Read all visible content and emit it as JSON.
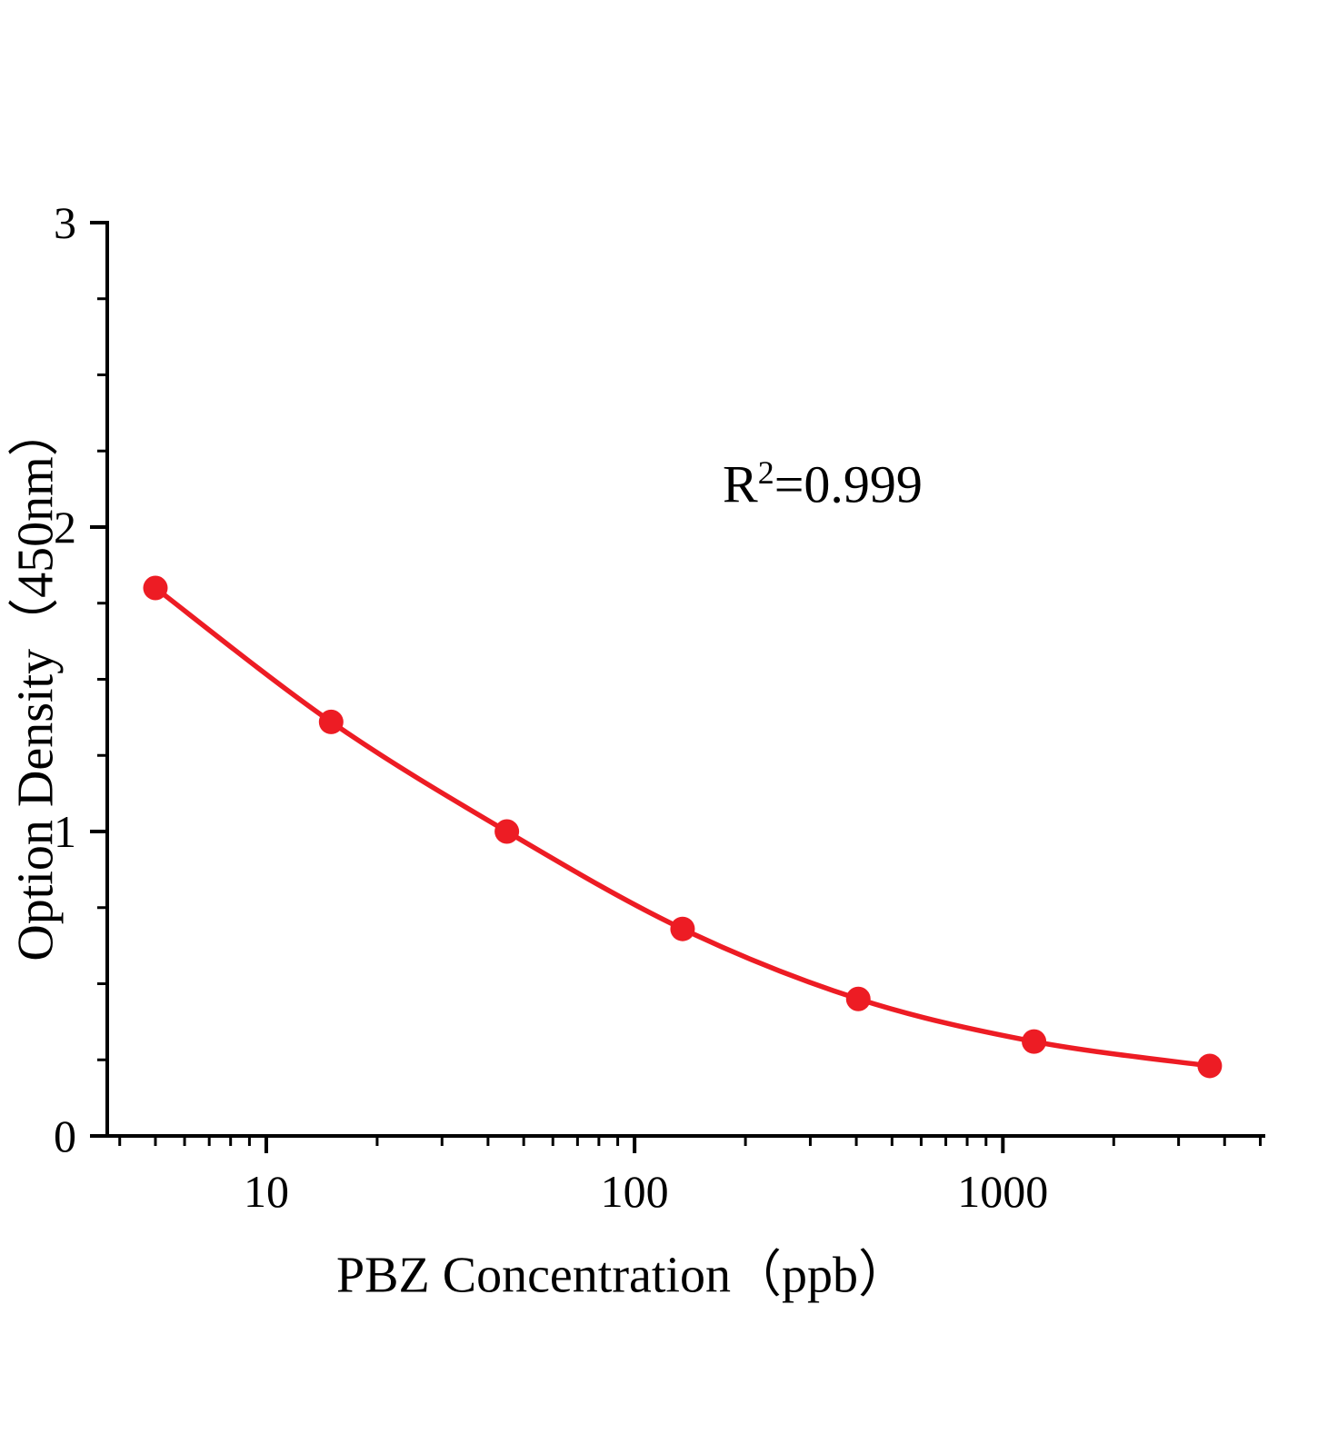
{
  "chart_data": {
    "type": "line",
    "title": "",
    "xlabel": "PBZ  Concentration（ppb）",
    "ylabel": "Option Density（450nm）",
    "annotation": {
      "base": "R",
      "sup": "2",
      "rest": "=0.999"
    },
    "x": [
      5,
      15,
      45,
      135,
      405,
      1215,
      3645
    ],
    "y": [
      1.8,
      1.36,
      1.0,
      0.68,
      0.45,
      0.31,
      0.23
    ],
    "x_scale": "log",
    "xlim": [
      3.7,
      5100
    ],
    "ylim": [
      0,
      3
    ],
    "x_major_ticks": [
      {
        "value": 10,
        "label": "10"
      },
      {
        "value": 100,
        "label": "100"
      },
      {
        "value": 1000,
        "label": "1000"
      }
    ],
    "y_major_ticks": [
      {
        "value": 0,
        "label": "0"
      },
      {
        "value": 1,
        "label": "1"
      },
      {
        "value": 2,
        "label": "2"
      },
      {
        "value": 3,
        "label": "3"
      }
    ],
    "y_minor_step": 0.25,
    "grid": false,
    "legend": "none",
    "colors": {
      "line": "#ed1c24",
      "marker": "#ed1c24",
      "axis": "#000000",
      "background": "#ffffff"
    }
  }
}
